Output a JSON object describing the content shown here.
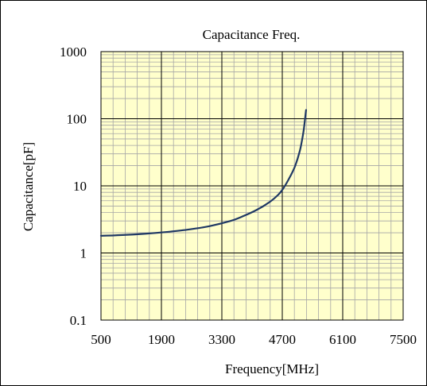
{
  "chart_data": {
    "type": "line",
    "title": "Capacitance Freq.",
    "xlabel": "Frequency[MHz]",
    "ylabel": "Capacitance[pF]",
    "xlim": [
      500,
      7500
    ],
    "ylim": [
      0.1,
      1000
    ],
    "yscale": "log",
    "grid": true,
    "x_ticks": [
      500,
      1900,
      3300,
      4700,
      6100,
      7500
    ],
    "x_tick_labels": [
      "500",
      "1900",
      "3300",
      "4700",
      "6100",
      "7500"
    ],
    "y_ticks": [
      0.1,
      1,
      10,
      100,
      1000
    ],
    "y_tick_labels": [
      "0.1",
      "1",
      "10",
      "100",
      "1000"
    ],
    "series": [
      {
        "x": [
          500,
          1000,
          1500,
          2000,
          2500,
          3000,
          3500,
          3800,
          4100,
          4400,
          4600,
          4700,
          4800,
          4900,
          5000,
          5100,
          5150,
          5200,
          5250
        ],
        "y": [
          1.8,
          1.85,
          1.93,
          2.05,
          2.22,
          2.5,
          3.0,
          3.55,
          4.35,
          5.7,
          7.3,
          8.7,
          11,
          14.5,
          20,
          32,
          45,
          70,
          135
        ]
      }
    ],
    "colors": {
      "line": "#1f3864",
      "plot_background": "#ffffcc",
      "major_grid": "#000000",
      "minor_grid": "#a6a6a6",
      "frame": "#000000"
    }
  }
}
